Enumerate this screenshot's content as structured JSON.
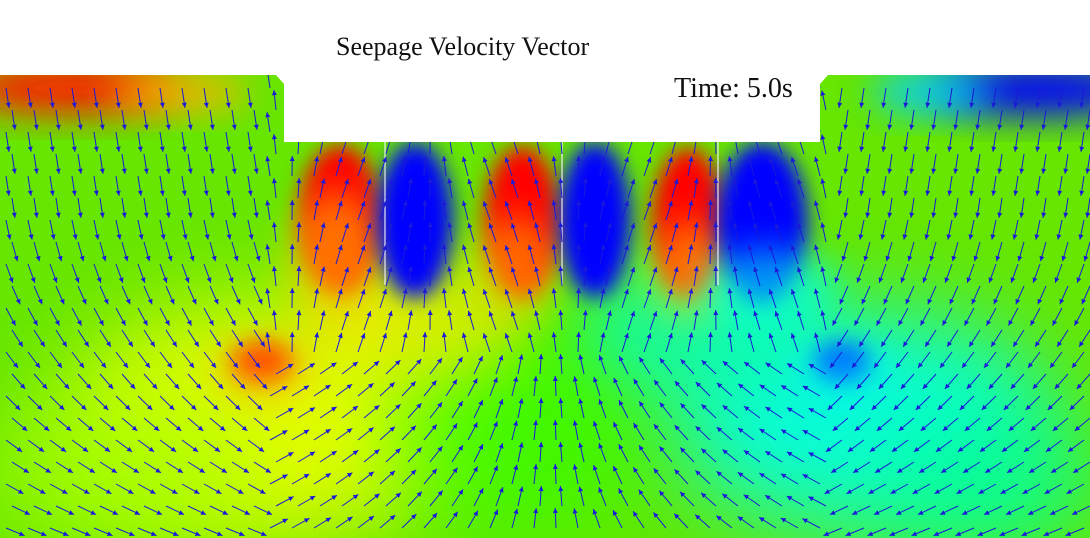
{
  "title": "Seepage Velocity Vector",
  "time_label": "Time: 5.0s",
  "colors": {
    "background": "#ffffff",
    "arrow": "#1a1ad8",
    "base_field": "#66e600",
    "high": "#ff0000",
    "mid_high": "#ffff00",
    "mid": "#00ff00",
    "mid_low": "#00ffff",
    "low": "#0000ff"
  }
}
